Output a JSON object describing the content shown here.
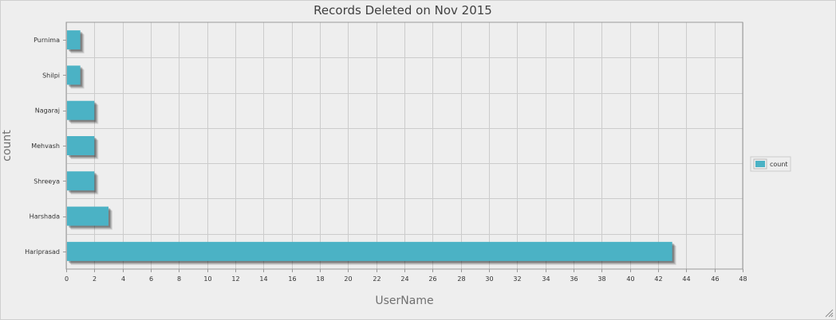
{
  "chart_data": {
    "type": "bar",
    "orientation": "horizontal",
    "title": "Records Deleted on Nov 2015",
    "xlabel": "UserName",
    "ylabel": "count",
    "categories": [
      "Purnima",
      "Shilpi",
      "Nagaraj",
      "Mehvash",
      "Shreeya",
      "Harshada",
      "Hariprasad"
    ],
    "series": [
      {
        "name": "count",
        "values": [
          1,
          1,
          2,
          2,
          2,
          3,
          43
        ]
      }
    ],
    "xlim": [
      0,
      48
    ],
    "xticks": [
      "0",
      "2",
      "4",
      "6",
      "8",
      "10",
      "12",
      "14",
      "16",
      "18",
      "20",
      "22",
      "24",
      "26",
      "28",
      "30",
      "32",
      "34",
      "36",
      "38",
      "40",
      "42",
      "44",
      "46",
      "48"
    ],
    "grid": true,
    "legend": "right",
    "colors": {
      "bar": "#4bb2c5",
      "bar_shadow": "#c8c8c8",
      "grid": "#cccccc",
      "border": "#999999",
      "background": "#eeeeee"
    }
  }
}
